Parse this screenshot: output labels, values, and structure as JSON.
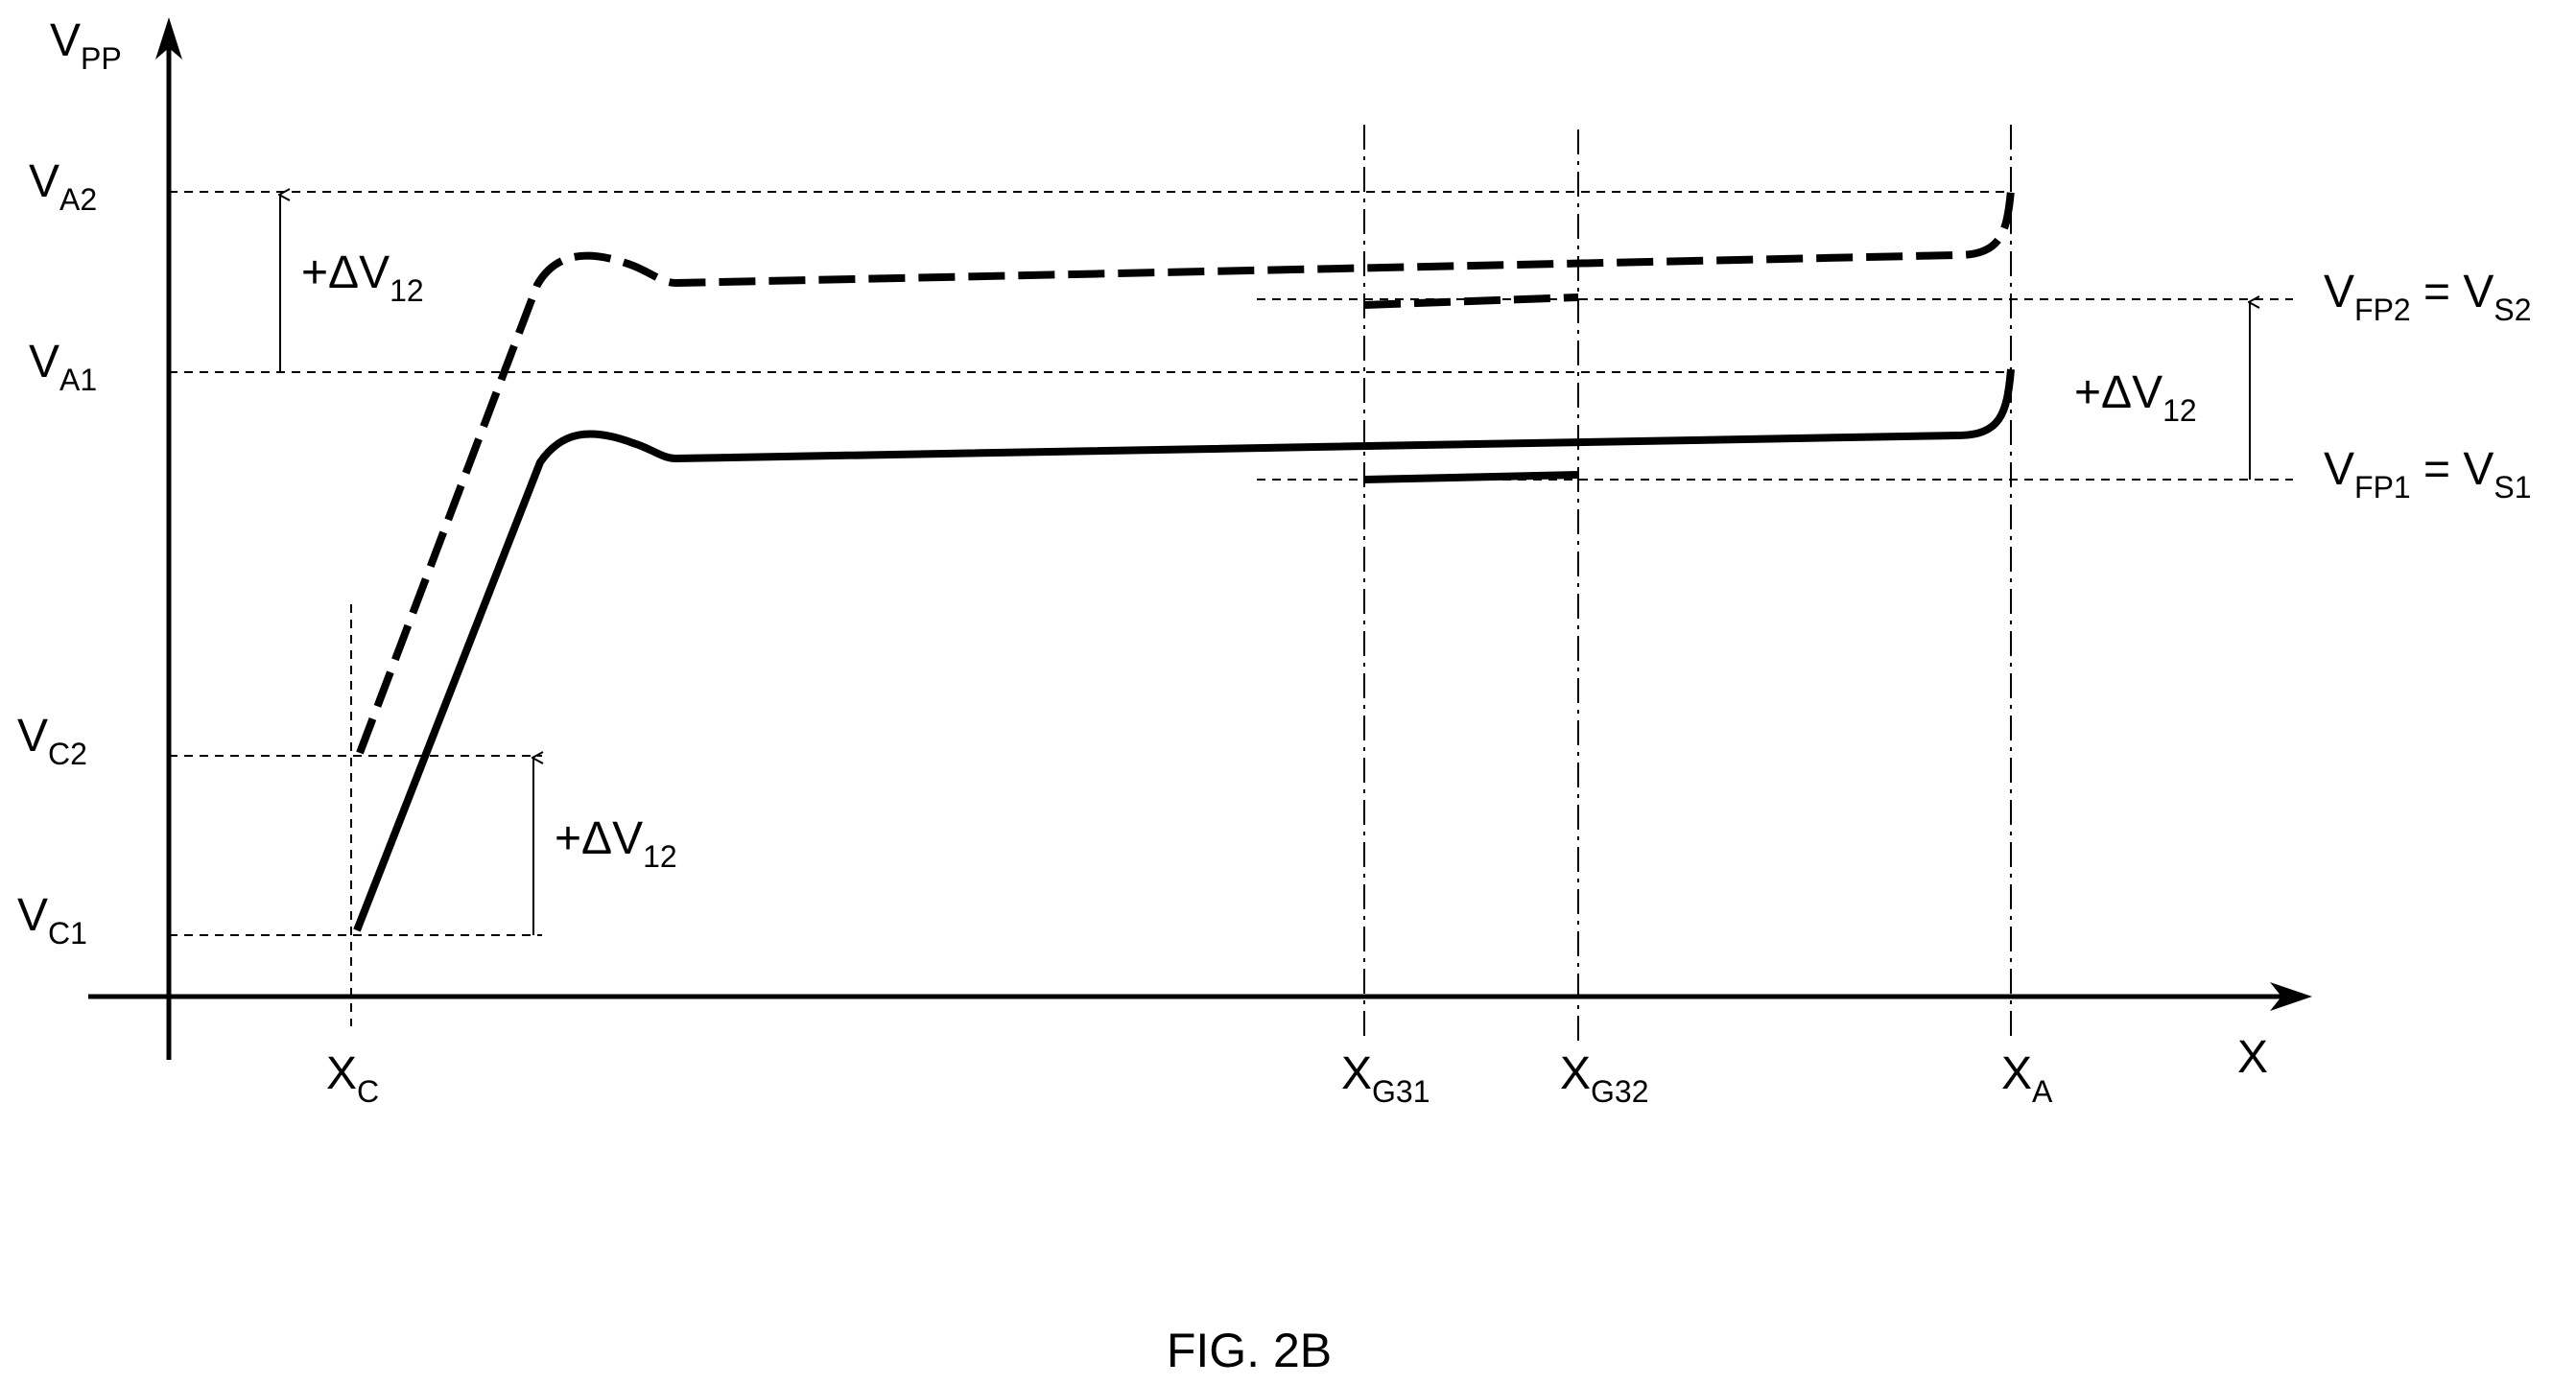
{
  "figure": {
    "caption": "FIG. 2B",
    "ink_color": "#000000",
    "background": "#ffffff"
  },
  "axes": {
    "y_label": {
      "main": "V",
      "sub": "PP"
    },
    "x_label": "X"
  },
  "y_levels": {
    "va2": {
      "main": "V",
      "sub": "A2"
    },
    "va1": {
      "main": "V",
      "sub": "A1"
    },
    "vc2": {
      "main": "V",
      "sub": "C2"
    },
    "vc1": {
      "main": "V",
      "sub": "C1"
    }
  },
  "x_positions": {
    "xc": {
      "main": "X",
      "sub": "C"
    },
    "xg31": {
      "main": "X",
      "sub": "G31"
    },
    "xg32": {
      "main": "X",
      "sub": "G32"
    },
    "xa": {
      "main": "X",
      "sub": "A"
    }
  },
  "right_labels": {
    "vfp2": {
      "v1": "V",
      "s1": "FP2",
      "eq": " = ",
      "v2": "V",
      "s2": "S2"
    },
    "vfp1": {
      "v1": "V",
      "s1": "FP1",
      "eq": " = ",
      "v2": "V",
      "s2": "S1"
    }
  },
  "deltas": {
    "top": {
      "main": "+ΔV",
      "sub": "12"
    },
    "right": {
      "main": "+ΔV",
      "sub": "12"
    },
    "low": {
      "main": "+ΔV",
      "sub": "12"
    }
  },
  "curves": [
    {
      "id": "curve-1",
      "style": "solid"
    },
    {
      "id": "curve-2",
      "style": "dashed"
    }
  ]
}
